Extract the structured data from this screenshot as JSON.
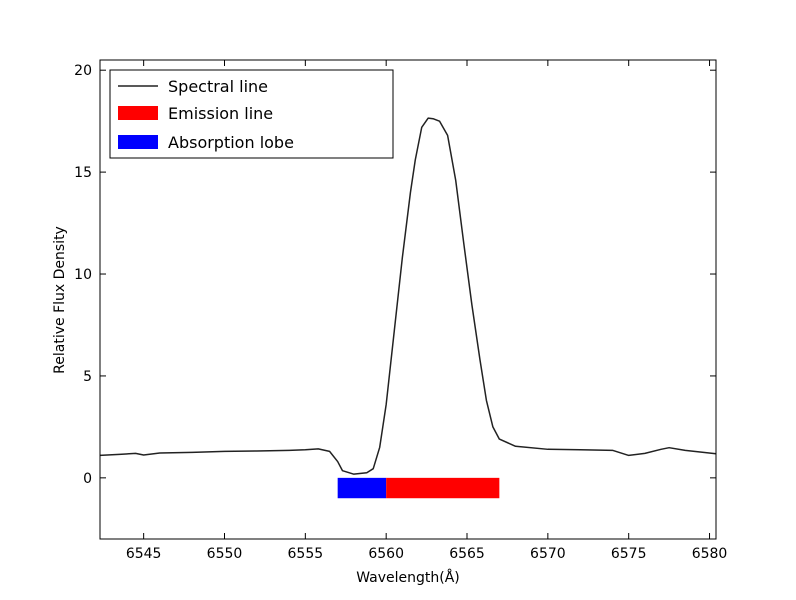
{
  "chart_data": {
    "type": "line",
    "title": "",
    "xlabel": "Wavelength(Å)",
    "ylabel": "Relative Flux Density",
    "xlim": [
      6542.3,
      6580.4
    ],
    "ylim": [
      -3,
      20.5
    ],
    "xticks": [
      6545,
      6550,
      6555,
      6560,
      6565,
      6570,
      6575,
      6580
    ],
    "yticks": [
      0,
      5,
      10,
      15,
      20
    ],
    "grid": false,
    "legend_position": "top-left",
    "legend": [
      {
        "label": "Spectral line",
        "kind": "line",
        "color": "#222222"
      },
      {
        "label": "Emission line",
        "kind": "patch",
        "color": "#ff0000"
      },
      {
        "label": "Absorption lobe",
        "kind": "patch",
        "color": "#0000ff"
      }
    ],
    "series": [
      {
        "name": "Spectral line",
        "color": "#222222",
        "x": [
          6542.3,
          6543.5,
          6544.5,
          6545.0,
          6546.0,
          6548.0,
          6550.0,
          6552.0,
          6554.0,
          6555.0,
          6555.8,
          6556.5,
          6557.0,
          6557.3,
          6558.0,
          6558.8,
          6559.2,
          6559.6,
          6560.0,
          6560.5,
          6561.0,
          6561.5,
          6561.8,
          6562.2,
          6562.6,
          6562.9,
          6563.3,
          6563.8,
          6564.3,
          6564.8,
          6565.3,
          6565.8,
          6566.2,
          6566.6,
          6567.0,
          6568.0,
          6570.0,
          6572.0,
          6574.0,
          6575.0,
          6576.0,
          6577.0,
          6577.5,
          6578.5,
          6580.4
        ],
        "y": [
          1.1,
          1.15,
          1.2,
          1.12,
          1.22,
          1.25,
          1.3,
          1.32,
          1.35,
          1.38,
          1.42,
          1.3,
          0.8,
          0.35,
          0.18,
          0.25,
          0.45,
          1.5,
          3.6,
          7.2,
          10.8,
          14.0,
          15.6,
          17.2,
          17.65,
          17.62,
          17.5,
          16.8,
          14.6,
          11.5,
          8.5,
          5.8,
          3.8,
          2.5,
          1.9,
          1.55,
          1.4,
          1.38,
          1.35,
          1.1,
          1.2,
          1.4,
          1.48,
          1.35,
          1.18
        ]
      }
    ],
    "bands": [
      {
        "name": "Absorption lobe",
        "color": "#0000ff",
        "x_start": 6557.0,
        "x_end": 6560.0,
        "y_low": -1.0,
        "y_high": 0.0
      },
      {
        "name": "Emission line",
        "color": "#ff0000",
        "x_start": 6560.0,
        "x_end": 6567.0,
        "y_low": -1.0,
        "y_high": 0.0
      }
    ]
  }
}
